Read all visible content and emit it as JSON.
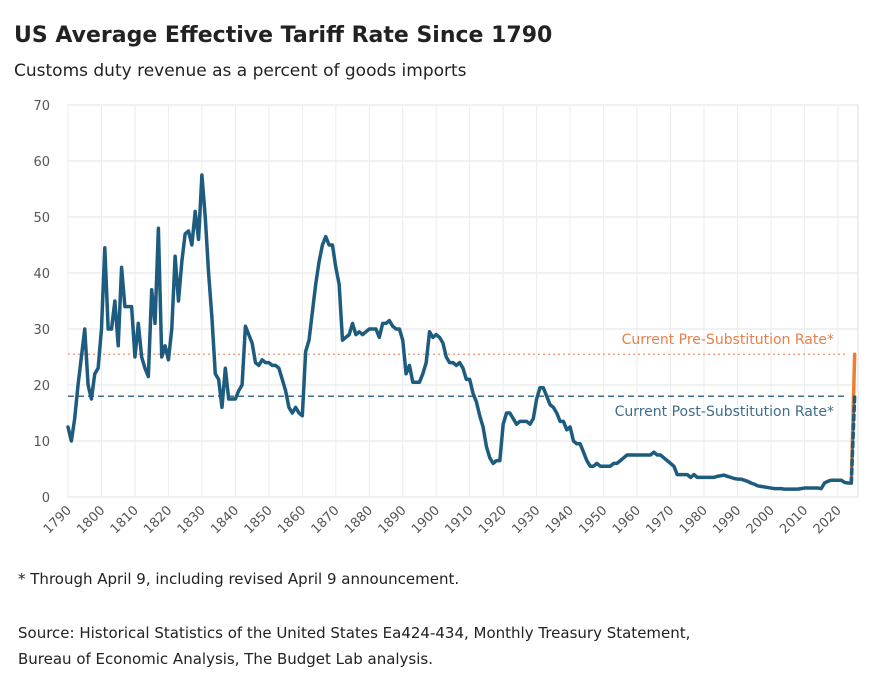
{
  "chart_data": {
    "type": "line",
    "title": "US Average Effective Tariff Rate Since 1790",
    "subtitle": "Customs duty revenue as a percent of goods imports",
    "footnote": "* Through April 9, including revised April 9 announcement.",
    "source": [
      "Source: Historical Statistics of the United States Ea424-434, Monthly Treasury Statement,",
      "Bureau of  Economic Analysis, The Budget Lab analysis."
    ],
    "xlim": [
      1790,
      2026
    ],
    "xticks": [
      1790,
      1800,
      1810,
      1820,
      1830,
      1840,
      1850,
      1860,
      1870,
      1880,
      1890,
      1900,
      1910,
      1920,
      1930,
      1940,
      1950,
      1960,
      1970,
      1980,
      1990,
      2000,
      2010,
      2020
    ],
    "ylim": [
      0,
      70
    ],
    "yticks": [
      0,
      10,
      20,
      30,
      40,
      50,
      60,
      70
    ],
    "grid": true,
    "reference_lines": [
      {
        "value": 25.5,
        "label": "Current Pre-Substitution Rate*",
        "color": "#f2a27a",
        "text_color": "#e8804a",
        "dash": "2,3",
        "text_side": "above"
      },
      {
        "value": 18,
        "label": "Current Post-Substitution Rate*",
        "color": "#3d6e8c",
        "text_color": "#3d6e8c",
        "dash": "6,4",
        "text_side": "below"
      }
    ],
    "series": [
      {
        "color": "#1d5c7e",
        "dash": false,
        "x": [
          1790,
          1791,
          1792,
          1793,
          1794,
          1795,
          1796,
          1797,
          1798,
          1799,
          1800,
          1801,
          1802,
          1803,
          1804,
          1805,
          1806,
          1807,
          1808,
          1809,
          1810,
          1811,
          1812,
          1813,
          1814,
          1815,
          1816,
          1817,
          1818,
          1819,
          1820,
          1821,
          1822,
          1823,
          1824,
          1825,
          1826,
          1827,
          1828,
          1829,
          1830,
          1831,
          1832,
          1833,
          1834,
          1835,
          1836,
          1837,
          1838,
          1839,
          1840,
          1841,
          1842,
          1843,
          1844,
          1845,
          1846,
          1847,
          1848,
          1849,
          1850,
          1851,
          1852,
          1853,
          1854,
          1855,
          1856,
          1857,
          1858,
          1859,
          1860,
          1861,
          1862,
          1863,
          1864,
          1865,
          1866,
          1867,
          1868,
          1869,
          1870,
          1871,
          1872,
          1873,
          1874,
          1875,
          1876,
          1877,
          1878,
          1879,
          1880,
          1881,
          1882,
          1883,
          1884,
          1885,
          1886,
          1887,
          1888,
          1889,
          1890,
          1891,
          1892,
          1893,
          1894,
          1895,
          1896,
          1897,
          1898,
          1899,
          1900,
          1901,
          1902,
          1903,
          1904,
          1905,
          1906,
          1907,
          1908,
          1909,
          1910,
          1911,
          1912,
          1913,
          1914,
          1915,
          1916,
          1917,
          1918,
          1919,
          1920,
          1921,
          1922,
          1923,
          1924,
          1925,
          1926,
          1927,
          1928,
          1929,
          1930,
          1931,
          1932,
          1933,
          1934,
          1935,
          1936,
          1937,
          1938,
          1939,
          1940,
          1941,
          1942,
          1943,
          1944,
          1945,
          1946,
          1947,
          1948,
          1949,
          1950,
          1951,
          1952,
          1953,
          1954,
          1955,
          1956,
          1957,
          1958,
          1959,
          1960,
          1961,
          1962,
          1963,
          1964,
          1965,
          1966,
          1967,
          1968,
          1969,
          1970,
          1971,
          1972,
          1973,
          1974,
          1975,
          1976,
          1977,
          1978,
          1979,
          1980,
          1981,
          1982,
          1983,
          1984,
          1985,
          1986,
          1987,
          1988,
          1989,
          1990,
          1991,
          1992,
          1993,
          1994,
          1995,
          1996,
          1997,
          1998,
          1999,
          2000,
          2001,
          2002,
          2003,
          2004,
          2005,
          2006,
          2007,
          2008,
          2009,
          2010,
          2011,
          2012,
          2013,
          2014,
          2015,
          2016,
          2017,
          2018,
          2019,
          2020,
          2021,
          2022,
          2023,
          2024
        ],
        "values": [
          12.5,
          10,
          14,
          20,
          25,
          30,
          20,
          17.5,
          22,
          23,
          30,
          44.5,
          30,
          30,
          35,
          27,
          41,
          34,
          34,
          34,
          25,
          31,
          25,
          23,
          21.5,
          37,
          31,
          48,
          25,
          27,
          24.5,
          30,
          43,
          35,
          42,
          47,
          47.5,
          45,
          51,
          46,
          57.5,
          50,
          40,
          32,
          22,
          21,
          16,
          23,
          17.5,
          17.5,
          17.5,
          19,
          20,
          30.5,
          29,
          27.5,
          24,
          23.5,
          24.5,
          24,
          24,
          23.5,
          23.5,
          23,
          21,
          19,
          16,
          15,
          16,
          15,
          14.5,
          26,
          28,
          33,
          38,
          42,
          45,
          46.5,
          45,
          45,
          41,
          38,
          28,
          28.5,
          29,
          31,
          29,
          29.5,
          29,
          29.5,
          30,
          30,
          30,
          28.5,
          31,
          31,
          31.5,
          30.5,
          30,
          30,
          28,
          22,
          23.5,
          20.5,
          20.5,
          20.5,
          22,
          24,
          29.5,
          28.5,
          29,
          28.5,
          27.5,
          25,
          24,
          24,
          23.5,
          24,
          23,
          21,
          21,
          18.5,
          17,
          14.5,
          12.5,
          9,
          7,
          6,
          6.5,
          6.5,
          13,
          15,
          15,
          14,
          13,
          13.5,
          13.5,
          13.5,
          13,
          14,
          17.5,
          19.5,
          19.5,
          18,
          16.5,
          16,
          15,
          13.5,
          13.5,
          12,
          12.5,
          10,
          9.5,
          9.5,
          8,
          6.5,
          5.5,
          5.5,
          6,
          5.5,
          5.5,
          5.5,
          5.5,
          6,
          6,
          6.5,
          7,
          7.5,
          7.5,
          7.5,
          7.5,
          7.5,
          7.5,
          7.5,
          7.5,
          8,
          7.5,
          7.5,
          7,
          6.5,
          6,
          5.5,
          4,
          4,
          4,
          4,
          3.5,
          4,
          3.5,
          3.5,
          3.5,
          3.5,
          3.5,
          3.5,
          3.7,
          3.8,
          3.9,
          3.7,
          3.5,
          3.3,
          3.2,
          3.2,
          3,
          2.8,
          2.5,
          2.3,
          2,
          1.9,
          1.8,
          1.7,
          1.6,
          1.5,
          1.5,
          1.5,
          1.4,
          1.4,
          1.4,
          1.4,
          1.4,
          1.5,
          1.6,
          1.6,
          1.6,
          1.6,
          1.6,
          1.5,
          2.5,
          2.8,
          3,
          3,
          3,
          3,
          2.6,
          2.5,
          2.5
        ]
      },
      {
        "color": "#ed7d31",
        "dash": false,
        "x": [
          2024,
          2025
        ],
        "values": [
          2.5,
          25.5
        ]
      },
      {
        "color": "#1d5c7e",
        "dash": true,
        "x": [
          2024,
          2025
        ],
        "values": [
          2.5,
          18
        ]
      }
    ]
  }
}
